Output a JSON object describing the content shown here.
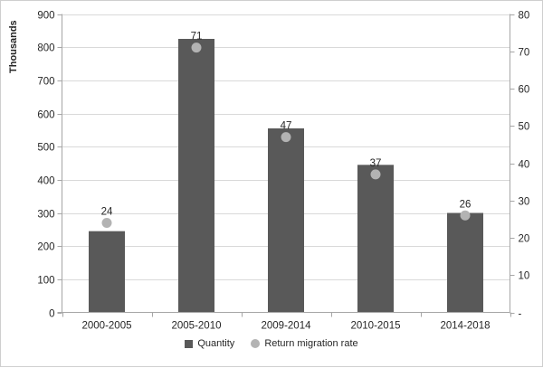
{
  "colors": {
    "bar": "#595959",
    "dot": "#b3b3b3",
    "grid": "#d9d9d9",
    "axis": "#a6a6a6",
    "text": "#262626",
    "background": "#ffffff",
    "border": "#cfcfcf"
  },
  "chart_data": {
    "type": "bar",
    "subtype": "combo-bar-scatter",
    "title": "",
    "categories": [
      "2000-2005",
      "2005-2010",
      "2009-2014",
      "2010-2015",
      "2014-2018"
    ],
    "series": [
      {
        "name": "Quantity",
        "type": "bar",
        "axis": "left",
        "values": [
          245,
          825,
          555,
          445,
          300
        ]
      },
      {
        "name": "Return migration rate",
        "type": "scatter",
        "axis": "right",
        "values": [
          24,
          71,
          47,
          37,
          26
        ],
        "point_labels": [
          "24",
          "71",
          "47",
          "37",
          "26"
        ]
      }
    ],
    "left_axis": {
      "title": "Thousands",
      "min": 0,
      "max": 900,
      "step": 100,
      "tick_labels": [
        "0",
        "100",
        "200",
        "300",
        "400",
        "500",
        "600",
        "700",
        "800",
        "900"
      ]
    },
    "right_axis": {
      "title": "",
      "min": 0,
      "max": 80,
      "step": 10,
      "zero_label": "-",
      "tick_labels": [
        "-",
        "10",
        "20",
        "30",
        "40",
        "50",
        "60",
        "70",
        "80"
      ]
    },
    "grid": true,
    "legend_position": "bottom",
    "legend": [
      {
        "label": "Quantity",
        "marker": "square"
      },
      {
        "label": "Return migration rate",
        "marker": "circle"
      }
    ]
  }
}
